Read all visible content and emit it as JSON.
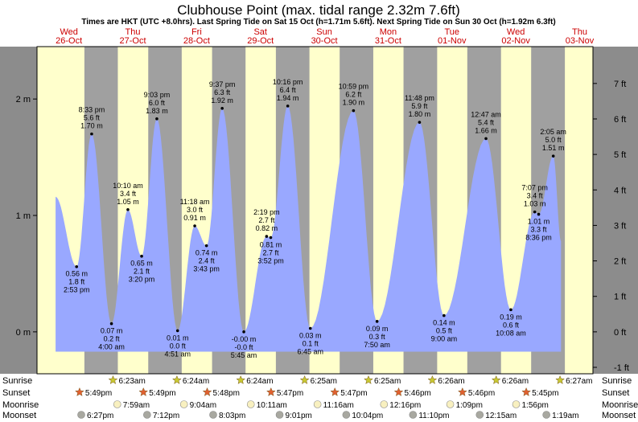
{
  "chart_data": {
    "type": "area",
    "title": "Clubhouse Point (max. tidal range 2.32m 7.6ft)",
    "subtitle": "Times are HKT (UTC +8.0hrs). Last Spring Tide on Sat 15 Oct (h=1.71m 5.6ft). Next Spring Tide on Sun 30 Oct (h=1.92m 6.3ft)",
    "x_range": [
      "2022-10-26 00:00",
      "2022-11-03 17:00"
    ],
    "ylim_m": [
      -0.36,
      2.45
    ],
    "days": [
      {
        "weekday": "Wed",
        "date": "26-Oct"
      },
      {
        "weekday": "Thu",
        "date": "27-Oct"
      },
      {
        "weekday": "Fri",
        "date": "28-Oct"
      },
      {
        "weekday": "Sat",
        "date": "29-Oct"
      },
      {
        "weekday": "Sun",
        "date": "30-Oct"
      },
      {
        "weekday": "Mon",
        "date": "31-Oct"
      },
      {
        "weekday": "Tue",
        "date": "01-Nov"
      },
      {
        "weekday": "Wed",
        "date": "02-Nov"
      },
      {
        "weekday": "Thu",
        "date": "03-Nov"
      }
    ],
    "left_axis": {
      "unit": "m",
      "ticks": [
        {
          "value": 0,
          "label": "0 m"
        },
        {
          "value": 1,
          "label": "1 m"
        },
        {
          "value": 2,
          "label": "2 m"
        }
      ]
    },
    "right_axis": {
      "unit": "ft",
      "ticks": [
        {
          "value": -1,
          "label": "-1 ft"
        },
        {
          "value": 0,
          "label": "0 ft"
        },
        {
          "value": 1,
          "label": "1 ft"
        },
        {
          "value": 2,
          "label": "2 ft"
        },
        {
          "value": 3,
          "label": "3 ft"
        },
        {
          "value": 4,
          "label": "4 ft"
        },
        {
          "value": 5,
          "label": "5 ft"
        },
        {
          "value": 6,
          "label": "6 ft"
        },
        {
          "value": 7,
          "label": "7 ft"
        }
      ]
    },
    "series": [
      {
        "points": [
          {
            "t": "2022-10-26 07:00",
            "m": 1.16
          },
          {
            "t": "2022-10-26 14:53",
            "m": 0.56,
            "label": [
              "0.56 m",
              "1.8 ft",
              "2:53 pm"
            ],
            "pos": "below"
          },
          {
            "t": "2022-10-26 20:33",
            "m": 1.7,
            "label": [
              "8:33 pm",
              "5.6 ft",
              "1.70 m"
            ],
            "pos": "above"
          },
          {
            "t": "2022-10-27 04:00",
            "m": 0.07,
            "label": [
              "0.07 m",
              "0.2 ft",
              "4:00 am"
            ],
            "pos": "below"
          },
          {
            "t": "2022-10-27 10:10",
            "m": 1.05,
            "label": [
              "10:10 am",
              "3.4 ft",
              "1.05 m"
            ],
            "pos": "above"
          },
          {
            "t": "2022-10-27 15:20",
            "m": 0.65,
            "label": [
              "0.65 m",
              "2.1 ft",
              "3:20 pm"
            ],
            "pos": "below"
          },
          {
            "t": "2022-10-27 21:03",
            "m": 1.83,
            "label": [
              "9:03 pm",
              "6.0 ft",
              "1.83 m"
            ],
            "pos": "above"
          },
          {
            "t": "2022-10-28 04:51",
            "m": 0.01,
            "label": [
              "0.01 m",
              "0.0 ft",
              "4:51 am"
            ],
            "pos": "below"
          },
          {
            "t": "2022-10-28 11:18",
            "m": 0.91,
            "label": [
              "11:18 am",
              "3.0 ft",
              "0.91 m"
            ],
            "pos": "above"
          },
          {
            "t": "2022-10-28 15:43",
            "m": 0.74,
            "label": [
              "0.74 m",
              "2.4 ft",
              "3:43 pm"
            ],
            "pos": "below"
          },
          {
            "t": "2022-10-28 21:37",
            "m": 1.92,
            "label": [
              "9:37 pm",
              "6.3 ft",
              "1.92 m"
            ],
            "pos": "above"
          },
          {
            "t": "2022-10-29 05:45",
            "m": -0.0,
            "label": [
              "-0.00 m",
              "-0.0 ft",
              "5:45 am"
            ],
            "pos": "below"
          },
          {
            "t": "2022-10-29 14:19",
            "m": 0.82,
            "label": [
              "2:19 pm",
              "2.7 ft",
              "0.82 m"
            ],
            "pos": "above"
          },
          {
            "t": "2022-10-29 15:52",
            "m": 0.81,
            "label": [
              "0.81 m",
              "2.7 ft",
              "3:52 pm"
            ],
            "pos": "below"
          },
          {
            "t": "2022-10-29 22:16",
            "m": 1.94,
            "label": [
              "10:16 pm",
              "6.4 ft",
              "1.94 m"
            ],
            "pos": "above"
          },
          {
            "t": "2022-10-30 06:45",
            "m": 0.03,
            "label": [
              "0.03 m",
              "0.1 ft",
              "6:45 am"
            ],
            "pos": "below"
          },
          {
            "t": "2022-10-30 22:59",
            "m": 1.9,
            "label": [
              "10:59 pm",
              "6.2 ft",
              "1.90 m"
            ],
            "pos": "above"
          },
          {
            "t": "2022-10-31 07:50",
            "m": 0.09,
            "label": [
              "0.09 m",
              "0.3 ft",
              "7:50 am"
            ],
            "pos": "below"
          },
          {
            "t": "2022-10-31 23:48",
            "m": 1.8,
            "label": [
              "11:48 pm",
              "5.9 ft",
              "1.80 m"
            ],
            "pos": "above"
          },
          {
            "t": "2022-11-01 09:00",
            "m": 0.14,
            "label": [
              "0.14 m",
              "0.5 ft",
              "9:00 am"
            ],
            "pos": "below"
          },
          {
            "t": "2022-11-02 00:47",
            "m": 1.66,
            "label": [
              "12:47 am",
              "5.4 ft",
              "1.66 m"
            ],
            "pos": "above"
          },
          {
            "t": "2022-11-02 10:08",
            "m": 0.19,
            "label": [
              "0.19 m",
              "0.6 ft",
              "10:08 am"
            ],
            "pos": "below"
          },
          {
            "t": "2022-11-02 19:07",
            "m": 1.03,
            "label": [
              "7:07 pm",
              "3.4 ft",
              "1.03 m"
            ],
            "pos": "above"
          },
          {
            "t": "2022-11-02 20:36",
            "m": 1.01,
            "label": [
              "1.01 m",
              "3.3 ft",
              "8:36 pm"
            ],
            "pos": "below"
          },
          {
            "t": "2022-11-03 02:05",
            "m": 1.51,
            "label": [
              "2:05 am",
              "5.0 ft",
              "1.51 m"
            ],
            "pos": "above"
          },
          {
            "t": "2022-11-03 05:00",
            "m": 0.78
          }
        ]
      }
    ],
    "sun": {
      "sunrise": [
        "6:23am",
        "6:24am",
        "6:24am",
        "6:25am",
        "6:25am",
        "6:26am",
        "6:26am",
        "6:27am"
      ],
      "sunset": [
        "5:49pm",
        "5:49pm",
        "5:48pm",
        "5:47pm",
        "5:47pm",
        "5:46pm",
        "5:46pm",
        "5:45pm"
      ]
    },
    "moon": {
      "moonrise": [
        "7:59am",
        "9:04am",
        "10:11am",
        "11:16am",
        "12:16pm",
        "1:09pm",
        "1:56pm"
      ],
      "moonset": [
        "6:27pm",
        "7:12pm",
        "8:03pm",
        "9:01pm",
        "10:04pm",
        "11:10pm",
        "12:15am",
        "1:19am"
      ]
    },
    "row_labels": {
      "sunrise": "Sunrise",
      "sunset": "Sunset",
      "moonrise": "Moonrise",
      "moonset": "Moonset"
    },
    "colors": {
      "day": "#ffffcc",
      "night": "#a0a0a0",
      "tide": "#99a8ff",
      "border": "#8c8c8c",
      "day_header": "#cc0000",
      "sunrise_star": "#c8c832",
      "sunset_star": "#e06030",
      "moon": "#f8f0c0",
      "moon_dark": "#a8a8a0"
    }
  }
}
